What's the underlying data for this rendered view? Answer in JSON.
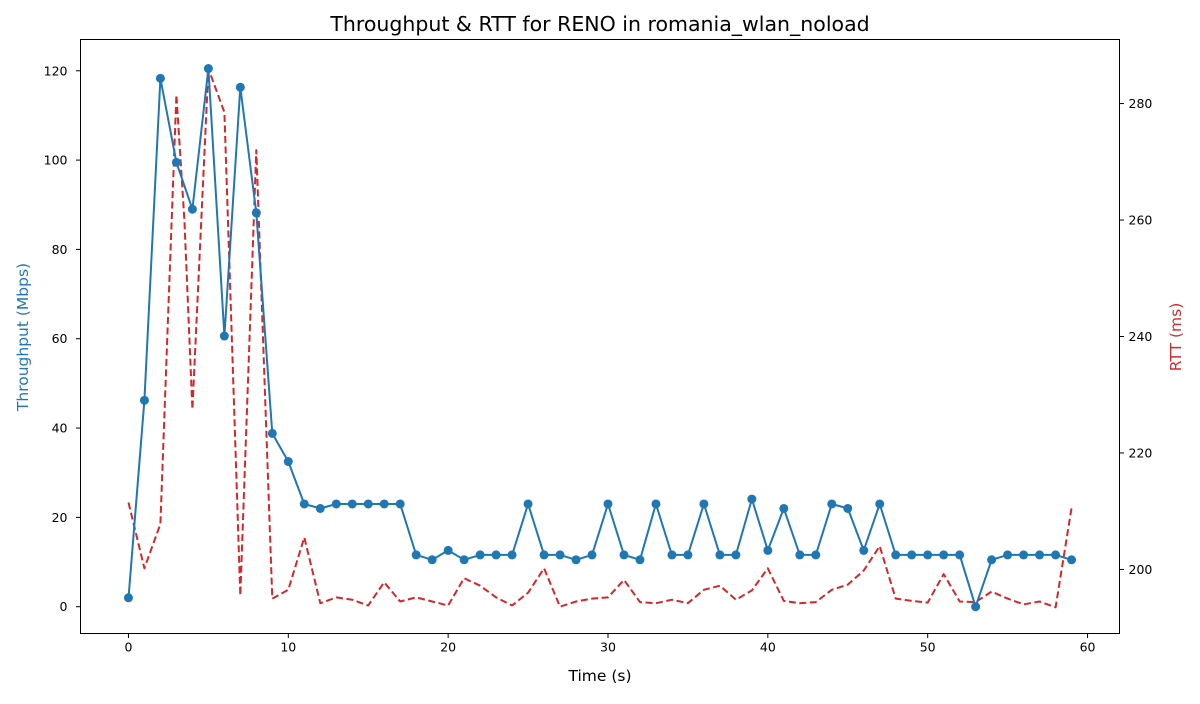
{
  "chart_data": {
    "type": "line",
    "title": "Throughput & RTT for RENO in romania_wlan_noload",
    "xlabel": "Time (s)",
    "ylabel_left": "Throughput (Mbps)",
    "ylabel_right": "RTT (ms)",
    "xlim": [
      -3,
      62
    ],
    "ylim_left": [
      -6,
      127
    ],
    "ylim_right": [
      189,
      291
    ],
    "x_ticks": [
      0,
      10,
      20,
      30,
      40,
      50,
      60
    ],
    "y_left_ticks": [
      0,
      20,
      40,
      60,
      80,
      100,
      120
    ],
    "y_right_ticks": [
      200,
      220,
      240,
      260,
      280
    ],
    "grid": false,
    "colors": {
      "throughput": "#1f77b4",
      "rtt": "#d62728",
      "axis": "#000000"
    },
    "series": [
      {
        "key": "throughput",
        "axis": "left",
        "style": "solid-markers",
        "x": [
          0,
          1,
          2,
          3,
          4,
          5,
          6,
          7,
          8,
          9,
          10,
          11,
          12,
          13,
          14,
          15,
          16,
          17,
          18,
          19,
          20,
          21,
          22,
          23,
          24,
          25,
          26,
          27,
          28,
          29,
          30,
          31,
          32,
          33,
          34,
          35,
          36,
          37,
          38,
          39,
          40,
          41,
          42,
          43,
          44,
          45,
          46,
          47,
          48,
          49,
          50,
          51,
          52,
          53,
          54,
          55,
          56,
          57,
          58,
          59
        ],
        "values": [
          2,
          46.2,
          118.3,
          99.5,
          89,
          120.5,
          60.6,
          116.3,
          88.2,
          38.8,
          32.5,
          23,
          22,
          23,
          23,
          23,
          23,
          23,
          11.6,
          10.5,
          12.6,
          10.5,
          11.6,
          11.6,
          11.6,
          23,
          11.6,
          11.6,
          10.5,
          11.6,
          23,
          11.6,
          10.5,
          23,
          11.6,
          11.6,
          23,
          11.6,
          11.6,
          24.1,
          12.6,
          22,
          11.6,
          11.6,
          23,
          22,
          12.6,
          23,
          11.6,
          11.6,
          11.6,
          11.6,
          11.6,
          0,
          10.5,
          11.6,
          11.6,
          11.6,
          11.6,
          10.5
        ]
      },
      {
        "key": "rtt",
        "axis": "right",
        "style": "dashed",
        "x": [
          0,
          1,
          2,
          2.5,
          3,
          3.5,
          4,
          5,
          6,
          7,
          8,
          9,
          10,
          11,
          12,
          13,
          14,
          15,
          16,
          17,
          18,
          19,
          20,
          21,
          22,
          23,
          24,
          25,
          26,
          27,
          28,
          29,
          30,
          31,
          32,
          33,
          34,
          35,
          36,
          37,
          38,
          39,
          40,
          41,
          42,
          43,
          44,
          45,
          46,
          47,
          48,
          49,
          50,
          51,
          52,
          53,
          54,
          55,
          56,
          57,
          58,
          59
        ],
        "values": [
          211.5,
          200.2,
          207.8,
          245,
          281.5,
          260,
          227.5,
          286,
          278.5,
          195.5,
          272,
          195,
          196.5,
          205.5,
          194.2,
          195.2,
          194.8,
          193.8,
          197.8,
          194.5,
          195.2,
          194.5,
          193.8,
          198.5,
          197.2,
          195.2,
          193.8,
          196,
          200.2,
          193.6,
          194.5,
          195,
          195.2,
          198.2,
          194.4,
          194.2,
          194.8,
          194.2,
          196.5,
          197.2,
          194.8,
          196.4,
          200.2,
          194.6,
          194.2,
          194.4,
          196.5,
          197.4,
          199.8,
          204,
          195,
          194.6,
          194.3,
          199.2,
          194.5,
          194.4,
          196.2,
          195,
          194,
          194.5,
          193.5,
          210.5
        ]
      }
    ]
  }
}
